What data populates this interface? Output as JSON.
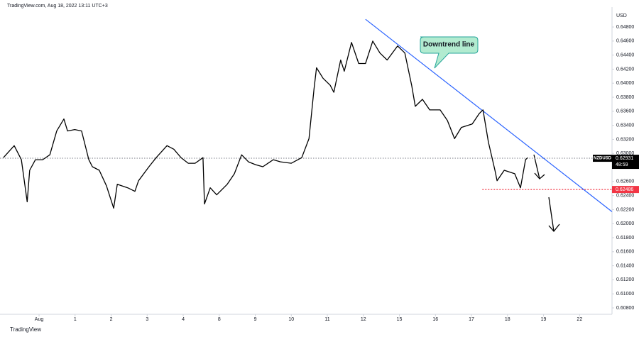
{
  "chart_data": {
    "type": "line",
    "header": "TradingView.com, Aug 18, 2022 13:11 UTC+3",
    "y_axis_unit": "USD",
    "footer": "TradingView",
    "series": [
      {
        "name": "NZDUSD",
        "color": "#000000",
        "x": [
          -0.99,
          -0.69,
          -0.49,
          -0.33,
          -0.26,
          -0.1,
          0.1,
          0.3,
          0.49,
          0.69,
          0.79,
          0.99,
          1.18,
          1.38,
          1.48,
          1.67,
          1.87,
          2.07,
          2.17,
          2.46,
          2.66,
          2.76,
          3.05,
          3.25,
          3.55,
          3.74,
          3.94,
          4.14,
          4.33,
          4.55,
          4.59,
          4.75,
          4.93,
          5.22,
          5.42,
          5.62,
          5.81,
          6.01,
          6.21,
          6.5,
          6.7,
          7.0,
          7.29,
          7.49,
          7.63,
          7.7,
          7.88,
          8.08,
          8.18,
          8.37,
          8.47,
          8.67,
          8.87,
          9.06,
          9.26,
          9.46,
          9.66,
          9.95,
          10.15,
          10.34,
          10.44,
          10.64,
          10.84,
          11.13,
          11.33,
          11.53,
          11.72,
          12.02,
          12.22,
          12.32,
          12.47,
          12.65,
          12.71,
          12.91,
          13.2,
          13.36,
          13.5,
          13.56
        ],
        "values": [
          0.6294,
          0.6311,
          0.6291,
          0.6231,
          0.6276,
          0.6291,
          0.6291,
          0.6298,
          0.6332,
          0.6349,
          0.6332,
          0.6334,
          0.6332,
          0.6291,
          0.6281,
          0.6276,
          0.6254,
          0.6222,
          0.6256,
          0.6251,
          0.6246,
          0.6261,
          0.6281,
          0.6294,
          0.6311,
          0.6306,
          0.6294,
          0.6286,
          0.6286,
          0.6294,
          0.6228,
          0.6251,
          0.6241,
          0.6256,
          0.6271,
          0.6298,
          0.6288,
          0.6284,
          0.6281,
          0.6291,
          0.6288,
          0.6286,
          0.6294,
          0.6321,
          0.6392,
          0.6422,
          0.6407,
          0.6397,
          0.6387,
          0.6433,
          0.6417,
          0.6458,
          0.6428,
          0.6428,
          0.646,
          0.6443,
          0.6433,
          0.6453,
          0.6443,
          0.6397,
          0.6367,
          0.6377,
          0.6362,
          0.6362,
          0.6347,
          0.6321,
          0.6337,
          0.6342,
          0.6357,
          0.6362,
          0.6316,
          0.6276,
          0.6261,
          0.6276,
          0.6271,
          0.6251,
          0.6291,
          0.6294
        ]
      }
    ],
    "price_lines": [
      {
        "value": 0.62931,
        "color": "#787b86",
        "ticker": "NZDUSD",
        "countdown": "48:59",
        "label_color": "#000000"
      },
      {
        "value": 0.62486,
        "color": "#f23645",
        "label_color": "#f23645"
      }
    ],
    "trendline": {
      "label": "Downtrend line",
      "color": "#2962ff",
      "x": [
        9.06,
        15.9
      ],
      "values": [
        0.6491,
        0.6217
      ]
    },
    "xlim": [
      -1.084,
      15.9
    ],
    "ylim": [
      0.60709,
      0.65033
    ],
    "xticks": [
      {
        "value": 0,
        "label": "Aug"
      },
      1,
      2,
      3,
      4,
      {
        "value": 5,
        "label": "8"
      },
      {
        "value": 6,
        "label": "9"
      },
      {
        "value": 7,
        "label": "10"
      },
      {
        "value": 8,
        "label": "11"
      },
      {
        "value": 9,
        "label": "12"
      },
      {
        "value": 10,
        "label": "15"
      },
      {
        "value": 11,
        "label": "16"
      },
      {
        "value": 12,
        "label": "17"
      },
      {
        "value": 13,
        "label": "18"
      },
      {
        "value": 14,
        "label": "19"
      },
      {
        "value": 15,
        "label": "22"
      }
    ],
    "yticks": [
      {
        "value": 0.648,
        "label": "0.64800"
      },
      {
        "value": 0.646,
        "label": "0.64600"
      },
      {
        "value": 0.644,
        "label": "0.64400"
      },
      {
        "value": 0.642,
        "label": "0.64200"
      },
      {
        "value": 0.64,
        "label": "0.64000"
      },
      {
        "value": 0.638,
        "label": "0.63800"
      },
      {
        "value": 0.636,
        "label": "0.63600"
      },
      {
        "value": 0.634,
        "label": "0.63400"
      },
      {
        "value": 0.632,
        "label": "0.63200"
      },
      {
        "value": 0.63,
        "label": "0.63000"
      },
      {
        "value": 0.628,
        "label": "0.62800"
      },
      {
        "value": 0.626,
        "label": "0.62600"
      },
      {
        "value": 0.624,
        "label": "0.62400"
      },
      {
        "value": 0.622,
        "label": "0.62200"
      },
      {
        "value": 0.62,
        "label": "0.62000"
      },
      {
        "value": 0.618,
        "label": "0.61800"
      },
      {
        "value": 0.616,
        "label": "0.61600"
      },
      {
        "value": 0.614,
        "label": "0.61400"
      },
      {
        "value": 0.612,
        "label": "0.61200"
      },
      {
        "value": 0.61,
        "label": "0.61000"
      },
      {
        "value": 0.608,
        "label": "0.60800"
      }
    ]
  }
}
